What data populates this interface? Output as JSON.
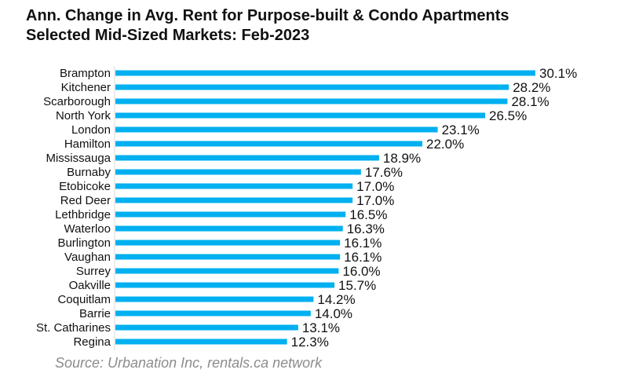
{
  "chart_data": {
    "type": "bar",
    "orientation": "horizontal",
    "title": "Ann. Change in Avg. Rent for Purpose-built & Condo Apartments",
    "subtitle": "Selected Mid-Sized Markets: Feb-2023",
    "categories": [
      "Brampton",
      "Kitchener",
      "Scarborough",
      "North York",
      "London",
      "Hamilton",
      "Mississauga",
      "Burnaby",
      "Etobicoke",
      "Red Deer",
      "Lethbridge",
      "Waterloo",
      "Burlington",
      "Vaughan",
      "Surrey",
      "Oakville",
      "Coquitlam",
      "Barrie",
      "St. Catharines",
      "Regina"
    ],
    "values": [
      30.1,
      28.2,
      28.1,
      26.5,
      23.1,
      22.0,
      18.9,
      17.6,
      17.0,
      17.0,
      16.5,
      16.3,
      16.1,
      16.1,
      16.0,
      15.7,
      14.2,
      14.0,
      13.1,
      12.3
    ],
    "value_labels": [
      "30.1%",
      "28.2%",
      "28.1%",
      "26.5%",
      "23.1%",
      "22.0%",
      "18.9%",
      "17.6%",
      "17.0%",
      "17.0%",
      "16.5%",
      "16.3%",
      "16.1%",
      "16.1%",
      "16.0%",
      "15.7%",
      "14.2%",
      "14.0%",
      "13.1%",
      "12.3%"
    ],
    "xlim": [
      0,
      30.1
    ],
    "bar_color": "#00b0f0",
    "grid": false,
    "legend": "none"
  },
  "source": "Source: Urbanation Inc, rentals.ca network"
}
